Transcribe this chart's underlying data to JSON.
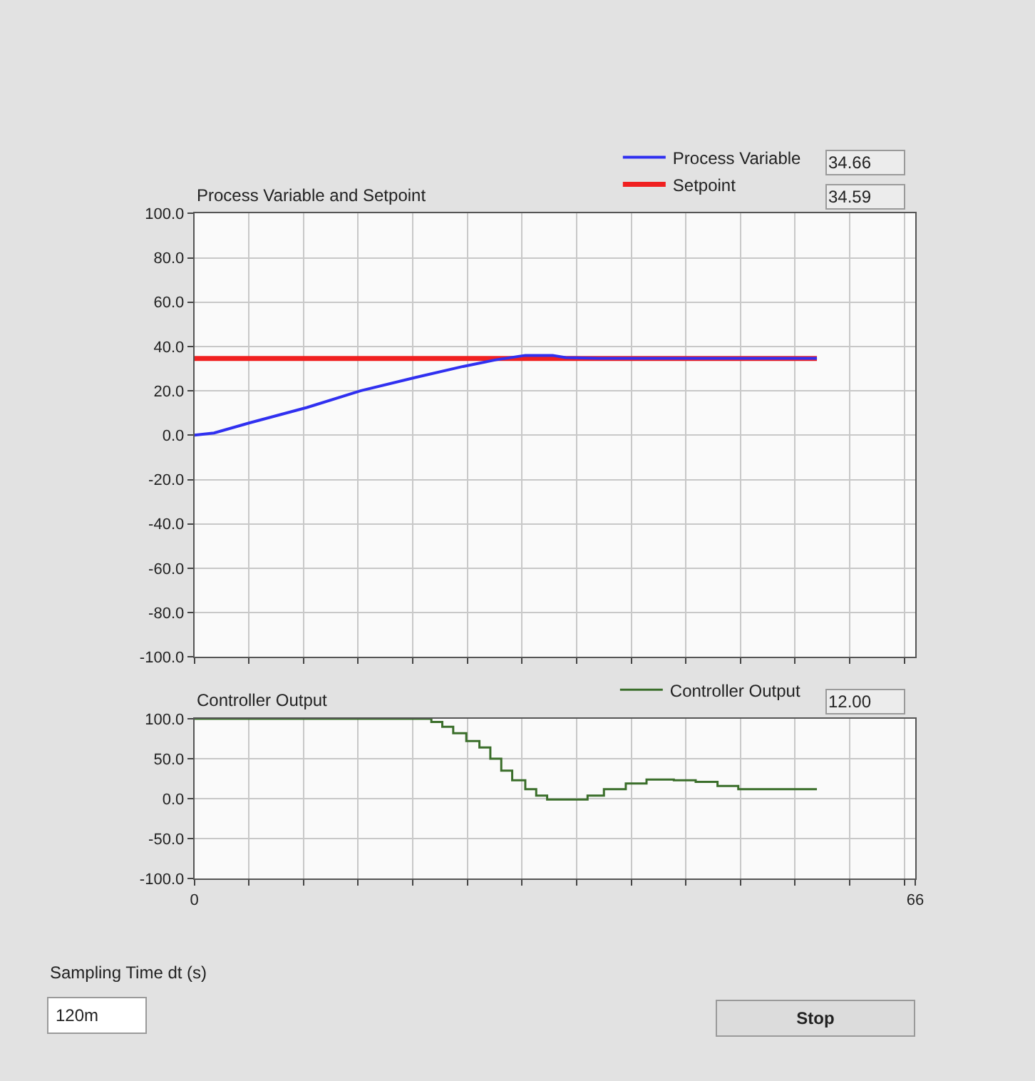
{
  "chart_data": [
    {
      "type": "line",
      "title": "Process Variable and Setpoint",
      "xlim": [
        0,
        66
      ],
      "xticks": [
        {
          "value": 0,
          "label": null
        },
        {
          "value": 5,
          "label": null
        },
        {
          "value": 10,
          "label": null
        },
        {
          "value": 15,
          "label": null
        },
        {
          "value": 20,
          "label": null
        },
        {
          "value": 25,
          "label": null
        },
        {
          "value": 30,
          "label": null
        },
        {
          "value": 35,
          "label": null
        },
        {
          "value": 40,
          "label": null
        },
        {
          "value": 45,
          "label": null
        },
        {
          "value": 50,
          "label": null
        },
        {
          "value": 55,
          "label": null
        },
        {
          "value": 60,
          "label": null
        },
        {
          "value": 65,
          "label": null
        }
      ],
      "ylim": [
        -100,
        100
      ],
      "yticks": [
        {
          "value": 100,
          "label": "100.0"
        },
        {
          "value": 80,
          "label": "80.0"
        },
        {
          "value": 60,
          "label": "60.0"
        },
        {
          "value": 40,
          "label": "40.0"
        },
        {
          "value": 20,
          "label": "20.0"
        },
        {
          "value": 0,
          "label": "0.0"
        },
        {
          "value": -20,
          "label": "-20.0"
        },
        {
          "value": -40,
          "label": "-40.0"
        },
        {
          "value": -60,
          "label": "-60.0"
        },
        {
          "value": -80,
          "label": "-80.0"
        },
        {
          "value": -100,
          "label": "-100.0"
        }
      ],
      "tick_labels": "y",
      "grid": true,
      "legend": "top right",
      "series": [
        {
          "name": "Process Variable",
          "color": "#3030f0",
          "x": [
            0,
            1.8,
            5,
            10.3,
            15.2,
            20.2,
            24.6,
            27.6,
            30.3,
            32.8,
            34,
            37,
            57
          ],
          "values": [
            0,
            1,
            5.5,
            12.5,
            20,
            26,
            31,
            34,
            36,
            36,
            35,
            34.7,
            34.7
          ]
        },
        {
          "name": "Setpoint",
          "color": "#f02020",
          "x": [
            0,
            57
          ],
          "values": [
            34.6,
            34.6
          ]
        }
      ],
      "annotations": [
        "34.66",
        "34.59"
      ]
    },
    {
      "type": "step",
      "title": "Controller Output",
      "xlim": [
        0,
        66
      ],
      "xticks": [
        0,
        {
          "value": 5,
          "label": null
        },
        {
          "value": 10,
          "label": null
        },
        {
          "value": 15,
          "label": null
        },
        {
          "value": 20,
          "label": null
        },
        {
          "value": 25,
          "label": null
        },
        {
          "value": 30,
          "label": null
        },
        {
          "value": 35,
          "label": null
        },
        {
          "value": 40,
          "label": null
        },
        {
          "value": 45,
          "label": null
        },
        {
          "value": 50,
          "label": null
        },
        {
          "value": 55,
          "label": null
        },
        {
          "value": 60,
          "label": null
        },
        {
          "value": 65,
          "label": null
        },
        66
      ],
      "ylim": [
        -100,
        100
      ],
      "yticks": [
        {
          "value": 100,
          "label": "100.0"
        },
        {
          "value": 50,
          "label": "50.0"
        },
        {
          "value": 0,
          "label": "0.0"
        },
        {
          "value": -50,
          "label": "-50.0"
        },
        {
          "value": -100,
          "label": "-100.0"
        }
      ],
      "grid": true,
      "legend": "top right",
      "series": [
        {
          "name": "Controller Output",
          "color": "#3a6e2a",
          "x": [
            0,
            21.7,
            22.7,
            23.7,
            24.9,
            26.1,
            27.1,
            28.1,
            29.1,
            30.3,
            31.3,
            32.3,
            33.3,
            36,
            37.5,
            39.5,
            41.4,
            43.9,
            45.9,
            47.9,
            49.8,
            51.3,
            57
          ],
          "values": [
            100,
            96,
            90,
            82,
            72,
            64,
            50,
            35,
            23,
            12,
            4,
            -1,
            -1,
            4,
            12,
            19,
            24,
            23,
            21,
            16,
            12,
            12,
            12
          ]
        }
      ],
      "annotations": [
        "12.00"
      ]
    },
    {
      "type": "other",
      "title": "Sampling Time dt (s)",
      "annotations": [
        "120m",
        "Stop"
      ]
    }
  ]
}
